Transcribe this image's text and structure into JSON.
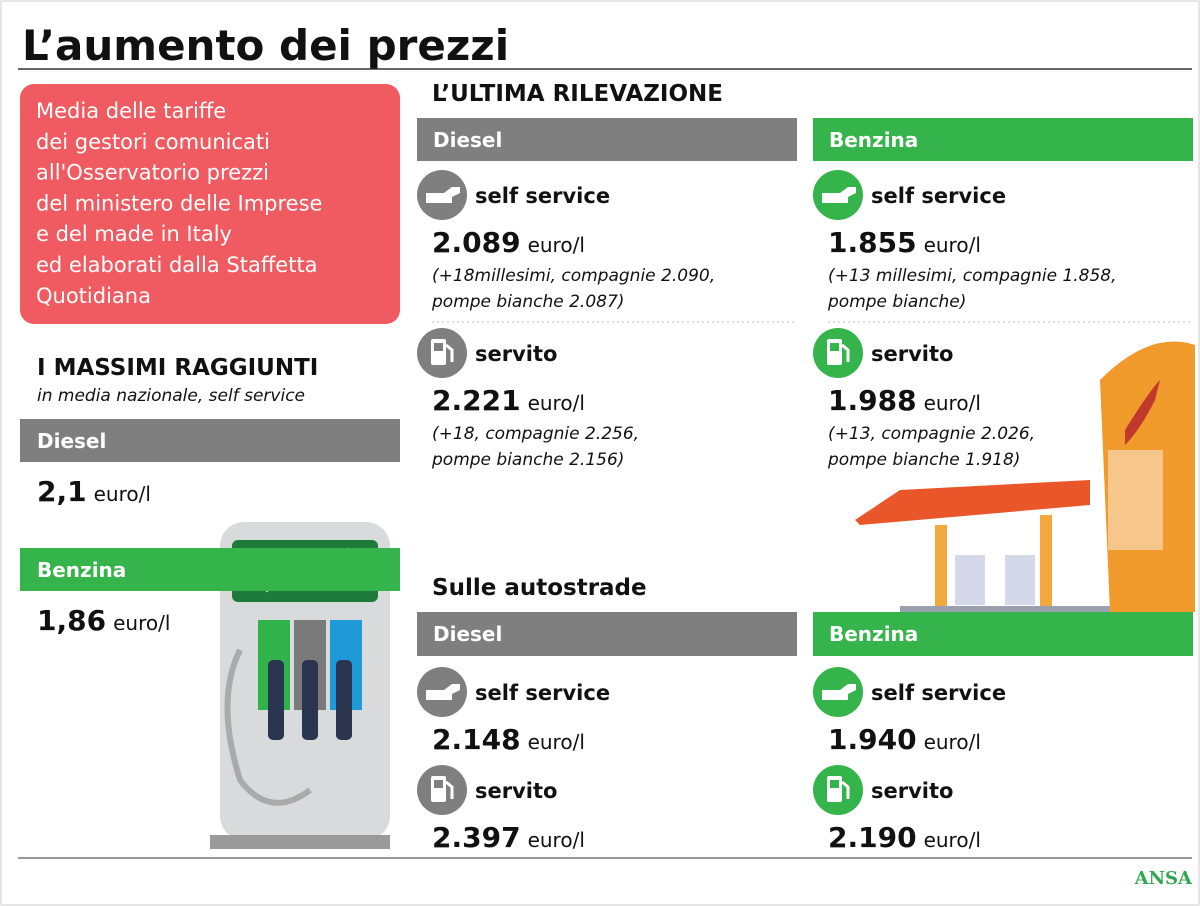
{
  "header": {
    "title": "L’aumento dei prezzi"
  },
  "note": {
    "lines": [
      "Media delle tariffe",
      "dei gestori comunicati",
      "all'Osservatorio prezzi",
      "del ministero delle Imprese",
      "e del made in Italy",
      "ed elaborati dalla Staffetta",
      "Quotidiana"
    ]
  },
  "maximums": {
    "title": "I MASSIMI RAGGIUNTI",
    "subtitle": "in media nazionale, self service",
    "items": [
      {
        "fuel": "Diesel",
        "price": "2,1",
        "unit": "euro/l"
      },
      {
        "fuel": "Benzina",
        "price": "1,86",
        "unit": "euro/l"
      }
    ]
  },
  "latest": {
    "title": "L’ULTIMA RILEVAZIONE",
    "columns": [
      {
        "fuel": "Diesel",
        "rows": [
          {
            "mode": "self service",
            "price": "2.089",
            "unit": "euro/l",
            "detail": [
              "(+18millesimi, compagnie 2.090,",
              "pompe bianche 2.087)"
            ]
          },
          {
            "mode": "servito",
            "price": "2.221",
            "unit": "euro/l",
            "detail": [
              "(+18, compagnie 2.256,",
              "pompe bianche 2.156)"
            ]
          }
        ]
      },
      {
        "fuel": "Benzina",
        "rows": [
          {
            "mode": "self service",
            "price": "1.855",
            "unit": "euro/l",
            "detail": [
              "(+13 millesimi, compagnie 1.858,",
              "pompe bianche)"
            ]
          },
          {
            "mode": "servito",
            "price": "1.988",
            "unit": "euro/l",
            "detail": [
              "(+13, compagnie 2.026,",
              "pompe bianche 1.918)"
            ]
          }
        ]
      }
    ]
  },
  "highways": {
    "title": "Sulle autostrade",
    "columns": [
      {
        "fuel": "Diesel",
        "rows": [
          {
            "mode": "self service",
            "price": "2.148",
            "unit": "euro/l"
          },
          {
            "mode": "servito",
            "price": "2.397",
            "unit": "euro/l"
          }
        ]
      },
      {
        "fuel": "Benzina",
        "rows": [
          {
            "mode": "self service",
            "price": "1.940",
            "unit": "euro/l"
          },
          {
            "mode": "servito",
            "price": "2.190",
            "unit": "euro/l"
          }
        ]
      }
    ]
  },
  "footer": {
    "source": "ANSA"
  }
}
